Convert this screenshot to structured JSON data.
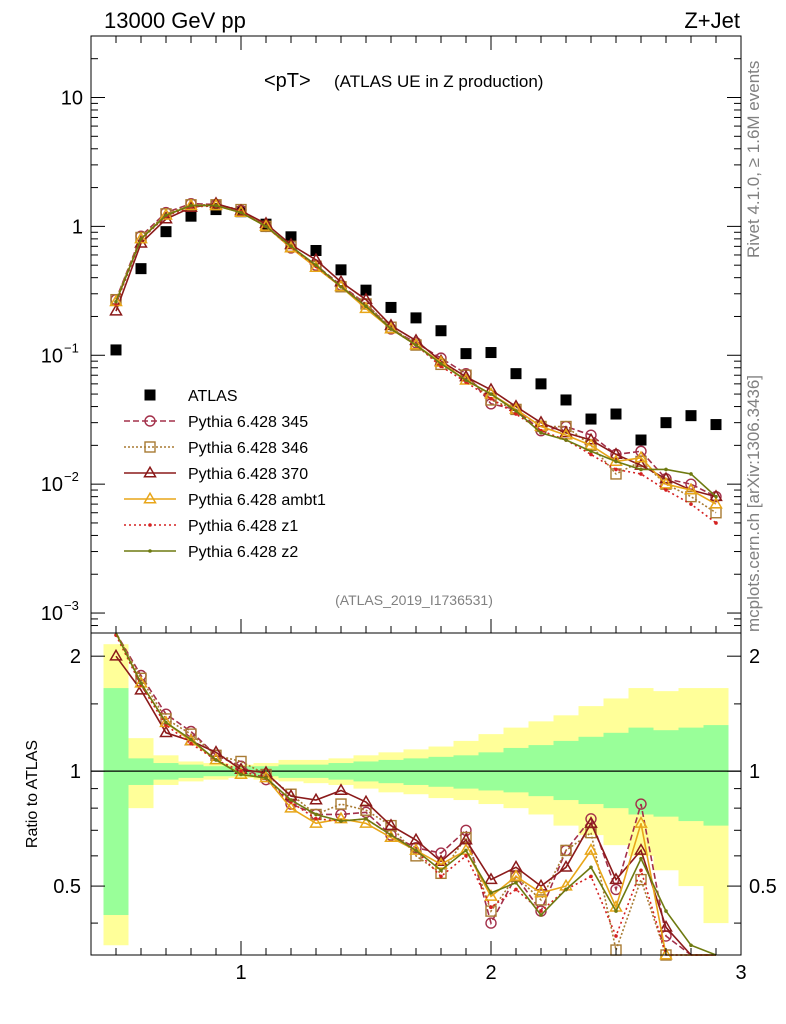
{
  "header": {
    "left": "13000 GeV pp",
    "right": "Z+Jet",
    "side_top": "Rivet 4.1.0, ≥ 1.6M events",
    "side_bottom": "mcplots.cern.ch [arXiv:1306.3436]"
  },
  "chart_data": {
    "type": "scatter",
    "title_main": "<pT>",
    "title_sub": "(ATLAS UE in Z production)",
    "watermark": "(ATLAS_2019_I1736531)",
    "ratio_ylabel": "Ratio to ATLAS",
    "x_range": [
      0.4,
      3.0
    ],
    "x_ticks": [
      "1",
      "2",
      "3"
    ],
    "top_yscale": "log",
    "top_ylim": [
      0.0007,
      30
    ],
    "top_y_ticks": [
      {
        "base": "10",
        "exp": "",
        "v": 10
      },
      {
        "base": "1",
        "exp": "",
        "v": 1
      },
      {
        "base": "10",
        "exp": "−1",
        "v": 0.1
      },
      {
        "base": "10",
        "exp": "−2",
        "v": 0.01
      },
      {
        "base": "10",
        "exp": "−3",
        "v": 0.001
      }
    ],
    "ratio_ylim": [
      0.33,
      2.3
    ],
    "ratio_y_ticks": [
      "0.5",
      "1",
      "2"
    ],
    "x": [
      0.5,
      0.6,
      0.7,
      0.8,
      0.9,
      1.0,
      1.1,
      1.2,
      1.3,
      1.4,
      1.5,
      1.6,
      1.7,
      1.8,
      1.9,
      2.0,
      2.1,
      2.2,
      2.3,
      2.4,
      2.5,
      2.6,
      2.7,
      2.8,
      2.9
    ],
    "series": [
      {
        "name": "ATLAS",
        "color": "#000000",
        "marker": "square",
        "dash": "",
        "values": [
          0.11,
          0.47,
          0.91,
          1.2,
          1.35,
          1.3,
          1.04,
          0.83,
          0.65,
          0.46,
          0.32,
          0.235,
          0.195,
          0.155,
          0.103,
          0.105,
          0.072,
          0.06,
          0.045,
          0.032,
          0.035,
          0.022,
          0.03,
          0.034,
          0.029
        ]
      },
      {
        "name": "Pythia 6.428 345",
        "color": "#a3304a",
        "marker": "circle",
        "dash": "6,3",
        "values": [
          0.27,
          0.84,
          1.28,
          1.5,
          1.48,
          1.33,
          1.0,
          0.68,
          0.5,
          0.35,
          0.25,
          0.16,
          0.125,
          0.095,
          0.072,
          0.042,
          0.038,
          0.026,
          0.028,
          0.024,
          0.017,
          0.018,
          0.011,
          0.01,
          0.008
        ],
        "ratio": [
          2.45,
          1.78,
          1.41,
          1.27,
          1.1,
          1.03,
          0.95,
          0.82,
          0.77,
          0.77,
          0.78,
          0.68,
          0.63,
          0.61,
          0.7,
          0.4,
          0.53,
          0.43,
          0.62,
          0.75,
          0.49,
          0.82,
          0.37,
          0.3,
          0.28
        ]
      },
      {
        "name": "Pythia 6.428 346",
        "color": "#a87a32",
        "marker": "square-open",
        "dash": "2,2",
        "values": [
          0.27,
          0.82,
          1.25,
          1.47,
          1.47,
          1.35,
          1.0,
          0.7,
          0.49,
          0.34,
          0.25,
          0.165,
          0.12,
          0.085,
          0.07,
          0.045,
          0.038,
          0.028,
          0.028,
          0.02,
          0.012,
          0.015,
          0.01,
          0.008,
          0.006
        ],
        "ratio": [
          2.4,
          1.75,
          1.37,
          1.25,
          1.1,
          1.06,
          0.98,
          0.87,
          0.77,
          0.82,
          0.79,
          0.72,
          0.6,
          0.54,
          0.67,
          0.43,
          0.53,
          0.46,
          0.62,
          0.69,
          0.34,
          0.52,
          0.33,
          0.26,
          0.2
        ]
      },
      {
        "name": "Pythia 6.428 370",
        "color": "#8b1a1a",
        "marker": "triangle",
        "dash": "",
        "values": [
          0.22,
          0.74,
          1.14,
          1.4,
          1.5,
          1.32,
          1.05,
          0.72,
          0.55,
          0.37,
          0.27,
          0.17,
          0.13,
          0.09,
          0.068,
          0.054,
          0.04,
          0.03,
          0.025,
          0.022,
          0.017,
          0.014,
          0.011,
          0.009,
          0.008
        ],
        "ratio": [
          2.0,
          1.63,
          1.26,
          1.2,
          1.12,
          1.01,
          0.99,
          0.86,
          0.84,
          0.89,
          0.83,
          0.72,
          0.66,
          0.58,
          0.66,
          0.52,
          0.56,
          0.5,
          0.56,
          0.73,
          0.52,
          0.62,
          0.39,
          0.25,
          0.28
        ]
      },
      {
        "name": "Pythia 6.428 ambt1",
        "color": "#e8a619",
        "marker": "triangle-open",
        "dash": "",
        "values": [
          0.26,
          0.8,
          1.22,
          1.45,
          1.45,
          1.28,
          1.0,
          0.68,
          0.48,
          0.34,
          0.23,
          0.16,
          0.12,
          0.088,
          0.064,
          0.05,
          0.038,
          0.028,
          0.024,
          0.02,
          0.015,
          0.016,
          0.01,
          0.009,
          0.007
        ],
        "ratio": [
          2.35,
          1.7,
          1.34,
          1.2,
          1.07,
          0.98,
          0.96,
          0.8,
          0.73,
          0.75,
          0.73,
          0.67,
          0.62,
          0.57,
          0.62,
          0.47,
          0.53,
          0.48,
          0.5,
          0.62,
          0.44,
          0.73,
          0.33,
          0.26,
          0.24
        ]
      },
      {
        "name": "Pythia 6.428 z1",
        "color": "#d42020",
        "marker": "dot",
        "dash": "2,3",
        "values": [
          0.25,
          0.79,
          1.2,
          1.42,
          1.44,
          1.3,
          1.0,
          0.69,
          0.49,
          0.34,
          0.24,
          0.16,
          0.12,
          0.082,
          0.062,
          0.046,
          0.035,
          0.026,
          0.022,
          0.017,
          0.013,
          0.012,
          0.009,
          0.007,
          0.005
        ],
        "ratio": [
          2.27,
          1.68,
          1.32,
          1.18,
          1.07,
          1.0,
          0.96,
          0.83,
          0.75,
          0.74,
          0.75,
          0.68,
          0.62,
          0.53,
          0.6,
          0.44,
          0.49,
          0.43,
          0.49,
          0.53,
          0.37,
          0.55,
          0.3,
          0.21,
          0.17
        ]
      },
      {
        "name": "Pythia 6.428 z2",
        "color": "#6e7a10",
        "marker": "dot",
        "dash": "",
        "values": [
          0.26,
          0.8,
          1.22,
          1.45,
          1.45,
          1.28,
          1.0,
          0.7,
          0.5,
          0.34,
          0.24,
          0.16,
          0.12,
          0.086,
          0.064,
          0.05,
          0.037,
          0.025,
          0.022,
          0.018,
          0.015,
          0.013,
          0.013,
          0.012,
          0.008
        ],
        "ratio": [
          2.36,
          1.7,
          1.34,
          1.21,
          1.07,
          0.98,
          0.96,
          0.84,
          0.77,
          0.74,
          0.75,
          0.68,
          0.62,
          0.55,
          0.62,
          0.48,
          0.51,
          0.42,
          0.49,
          0.56,
          0.43,
          0.59,
          0.43,
          0.35,
          0.28
        ]
      }
    ],
    "bands": {
      "edges": [
        0.45,
        0.55,
        0.65,
        0.75,
        0.85,
        0.95,
        1.05,
        1.15,
        1.25,
        1.35,
        1.45,
        1.55,
        1.65,
        1.75,
        1.85,
        1.95,
        2.05,
        2.15,
        2.25,
        2.35,
        2.45,
        2.55,
        2.65,
        2.75,
        2.85,
        2.95
      ],
      "yellow": [
        [
          0.35,
          2.15
        ],
        [
          0.8,
          1.22
        ],
        [
          0.92,
          1.1
        ],
        [
          0.94,
          1.06
        ],
        [
          0.95,
          1.05
        ],
        [
          0.96,
          1.04
        ],
        [
          0.95,
          1.05
        ],
        [
          0.94,
          1.07
        ],
        [
          0.93,
          1.07
        ],
        [
          0.92,
          1.08
        ],
        [
          0.9,
          1.1
        ],
        [
          0.88,
          1.12
        ],
        [
          0.87,
          1.14
        ],
        [
          0.85,
          1.16
        ],
        [
          0.84,
          1.2
        ],
        [
          0.82,
          1.25
        ],
        [
          0.8,
          1.3
        ],
        [
          0.77,
          1.35
        ],
        [
          0.72,
          1.4
        ],
        [
          0.68,
          1.48
        ],
        [
          0.64,
          1.55
        ],
        [
          0.6,
          1.65
        ],
        [
          0.55,
          1.62
        ],
        [
          0.5,
          1.65
        ],
        [
          0.4,
          1.65
        ]
      ],
      "green": [
        [
          0.42,
          1.65
        ],
        [
          0.92,
          1.08
        ],
        [
          0.95,
          1.05
        ],
        [
          0.96,
          1.04
        ],
        [
          0.97,
          1.03
        ],
        [
          0.97,
          1.03
        ],
        [
          0.97,
          1.03
        ],
        [
          0.96,
          1.04
        ],
        [
          0.96,
          1.04
        ],
        [
          0.95,
          1.05
        ],
        [
          0.94,
          1.06
        ],
        [
          0.93,
          1.07
        ],
        [
          0.92,
          1.08
        ],
        [
          0.91,
          1.09
        ],
        [
          0.9,
          1.1
        ],
        [
          0.89,
          1.12
        ],
        [
          0.88,
          1.15
        ],
        [
          0.86,
          1.17
        ],
        [
          0.84,
          1.2
        ],
        [
          0.82,
          1.23
        ],
        [
          0.8,
          1.26
        ],
        [
          0.77,
          1.3
        ],
        [
          0.76,
          1.28
        ],
        [
          0.74,
          1.3
        ],
        [
          0.72,
          1.32
        ]
      ]
    }
  }
}
